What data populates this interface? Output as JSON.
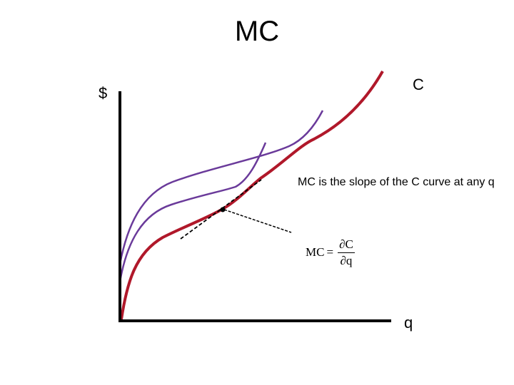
{
  "title": "MC",
  "y_axis_label": "$",
  "x_axis_label": "q",
  "curve_label": "C",
  "note_text": "MC is the slope of the C curve at any q",
  "formula": {
    "lhs": "MC",
    "equals": "=",
    "numerator": "∂C",
    "denominator": "∂q"
  },
  "colors": {
    "cost_curve": "#b0182a",
    "alt_curves": "#6a3a9a",
    "axes": "#000000",
    "tangent": "#000000"
  }
}
